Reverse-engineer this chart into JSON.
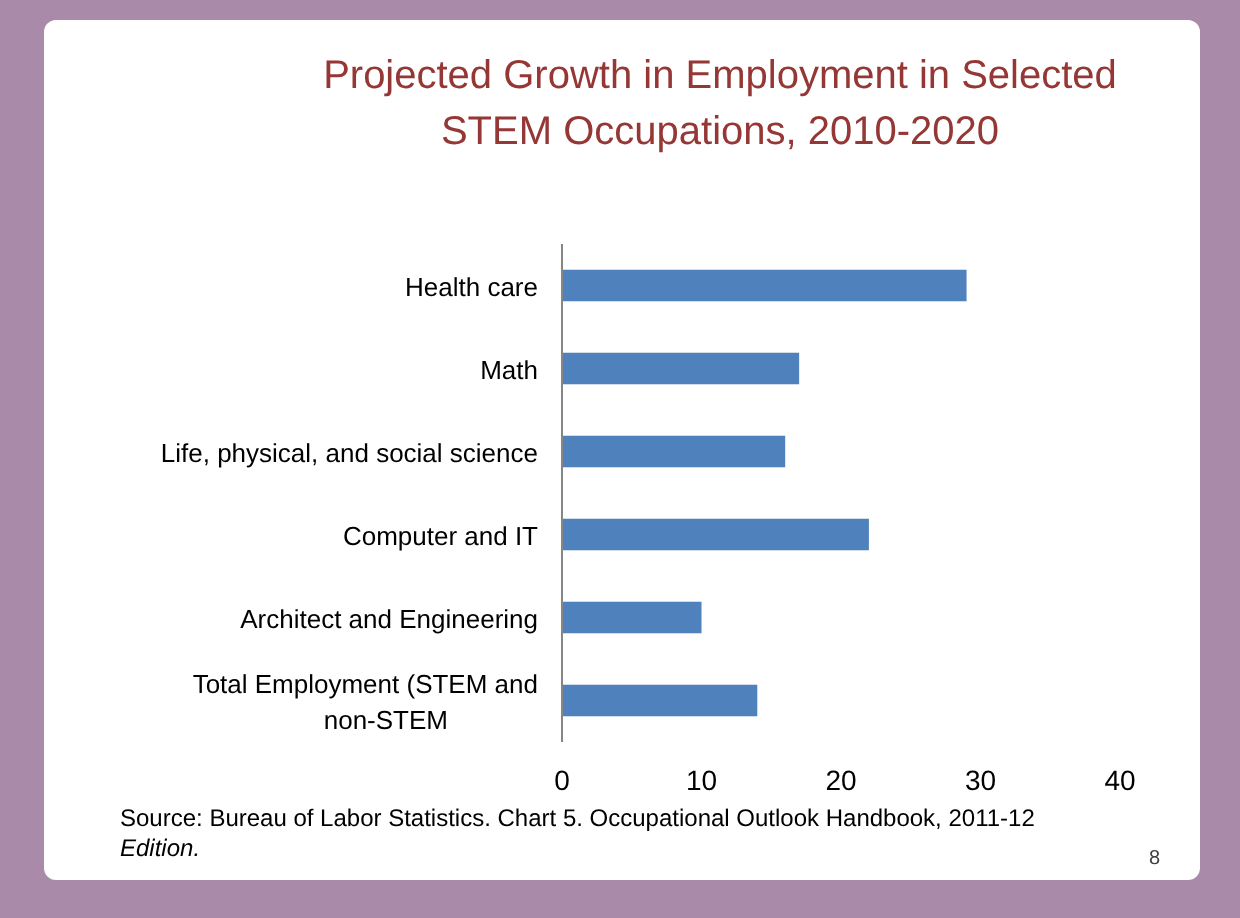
{
  "chart_data": {
    "type": "bar",
    "orientation": "horizontal",
    "title": "Projected Growth in Employment in Selected STEM Occupations, 2010-2020",
    "categories": [
      "Health care",
      "Math",
      "Life, physical, and social science",
      "Computer and IT",
      "Architect and Engineering",
      "Total Employment (STEM and non-STEM"
    ],
    "values": [
      29,
      17,
      16,
      22,
      10,
      14
    ],
    "color": "#4f81bd",
    "xlim": [
      0,
      40
    ],
    "xticks": [
      0,
      10,
      20,
      30,
      40
    ],
    "grid": false,
    "annotations": [
      "Source: Bureau of Labor Statistics. Chart 5. Occupational Outlook Handbook, 2011-12 Edition.",
      "8"
    ]
  }
}
